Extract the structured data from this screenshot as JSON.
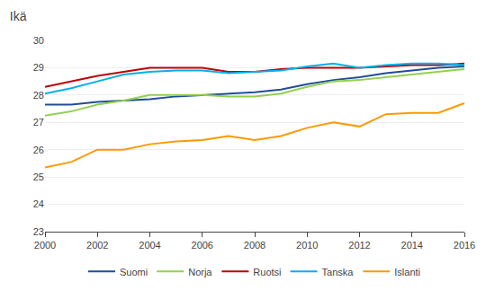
{
  "chart_data": {
    "type": "line",
    "title": "Ikä",
    "x": [
      2000,
      2001,
      2002,
      2003,
      2004,
      2005,
      2006,
      2007,
      2008,
      2009,
      2010,
      2011,
      2012,
      2013,
      2014,
      2015,
      2016
    ],
    "series": [
      {
        "name": "Suomi",
        "color": "#1f4e99",
        "values": [
          27.65,
          27.65,
          27.75,
          27.8,
          27.85,
          27.95,
          28.0,
          28.05,
          28.1,
          28.2,
          28.4,
          28.55,
          28.65,
          28.8,
          28.9,
          29.0,
          29.05
        ]
      },
      {
        "name": "Norja",
        "color": "#92d050",
        "values": [
          27.25,
          27.4,
          27.65,
          27.8,
          28.0,
          28.0,
          28.0,
          27.95,
          27.95,
          28.05,
          28.3,
          28.5,
          28.55,
          28.65,
          28.75,
          28.85,
          28.95
        ]
      },
      {
        "name": "Ruotsi",
        "color": "#c00000",
        "values": [
          28.3,
          28.5,
          28.7,
          28.85,
          29.0,
          29.0,
          29.0,
          28.85,
          28.85,
          28.95,
          29.0,
          29.0,
          29.0,
          29.05,
          29.1,
          29.1,
          29.15
        ]
      },
      {
        "name": "Tanska",
        "color": "#00b0f0",
        "values": [
          28.05,
          28.25,
          28.5,
          28.75,
          28.85,
          28.9,
          28.9,
          28.8,
          28.85,
          28.9,
          29.05,
          29.15,
          29.0,
          29.1,
          29.15,
          29.15,
          29.1
        ]
      },
      {
        "name": "Islanti",
        "color": "#ff9900",
        "values": [
          25.35,
          25.55,
          26.0,
          26.0,
          26.2,
          26.3,
          26.35,
          26.5,
          26.35,
          26.5,
          26.8,
          27.0,
          26.85,
          27.3,
          27.35,
          27.35,
          27.7
        ]
      }
    ],
    "xlim": [
      2000,
      2016
    ],
    "xticks": [
      2000,
      2002,
      2004,
      2006,
      2008,
      2010,
      2012,
      2014,
      2016
    ],
    "ylim": [
      23,
      30
    ],
    "yticks": [
      23,
      24,
      25,
      26,
      27,
      28,
      29,
      30
    ],
    "grid": true,
    "legend": "bottom"
  }
}
